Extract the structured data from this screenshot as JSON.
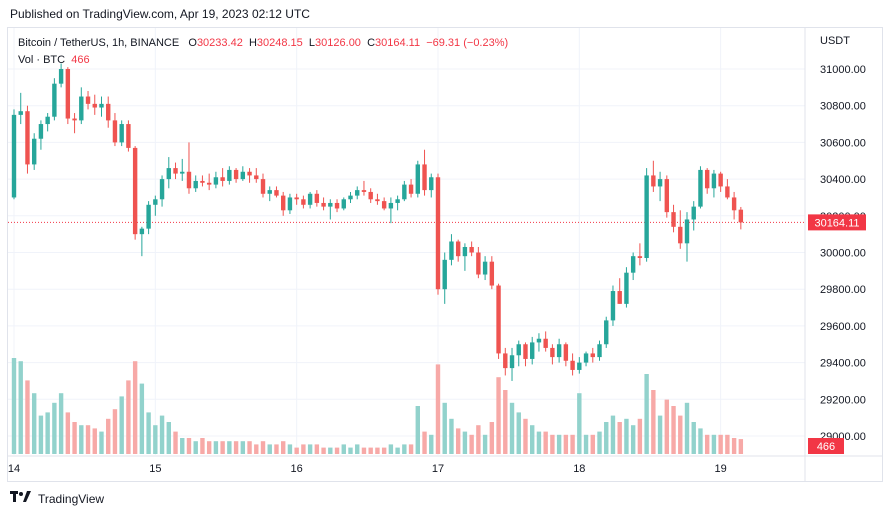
{
  "header": {
    "published": "Published on TradingView.com, Apr 19, 2023 02:12 UTC"
  },
  "legend": {
    "symbol": "Bitcoin / TetherUS, 1h, BINANCE",
    "o_label": "O",
    "o_value": "30233.42",
    "h_label": "H",
    "h_value": "30248.15",
    "l_label": "L",
    "l_value": "30126.00",
    "c_label": "C",
    "c_value": "30164.11",
    "change": "−69.31 (−0.23%)",
    "vol_label": "Vol · BTC",
    "vol_value": "466"
  },
  "axis": {
    "currency": "USDT",
    "last_price_badge": "30164.11",
    "volume_badge": "466"
  },
  "footer": {
    "brand": "TradingView"
  },
  "colors": {
    "up": "#26a69a",
    "down": "#ef5350",
    "up_vol": "#92d2cc",
    "down_vol": "#f7a9a7",
    "grid": "#f0f3fa"
  },
  "chart_data": {
    "type": "candlestick",
    "title": "Bitcoin / TetherUS, 1h, BINANCE",
    "ylim": [
      28900,
      31200
    ],
    "y_ticks": [
      29000,
      29200,
      29400,
      29600,
      29800,
      30000,
      30200,
      30400,
      30600,
      30800,
      31000
    ],
    "x_ticks": [
      {
        "label": "14",
        "index": 0
      },
      {
        "label": "15",
        "index": 21
      },
      {
        "label": "16",
        "index": 42
      },
      {
        "label": "17",
        "index": 63
      },
      {
        "label": "18",
        "index": 84
      },
      {
        "label": "19",
        "index": 105
      }
    ],
    "last_price": 30164.11,
    "grid": true,
    "ohlcv": [
      [
        30300,
        30780,
        30290,
        30750,
        3.0
      ],
      [
        30750,
        30870,
        30700,
        30770,
        2.9
      ],
      [
        30770,
        30800,
        30430,
        30480,
        2.3
      ],
      [
        30480,
        30650,
        30450,
        30620,
        1.9
      ],
      [
        30620,
        30720,
        30560,
        30700,
        1.2
      ],
      [
        30700,
        30760,
        30660,
        30740,
        1.3
      ],
      [
        30740,
        30950,
        30720,
        30920,
        1.6
      ],
      [
        30920,
        31030,
        30900,
        31000,
        1.9
      ],
      [
        31000,
        31010,
        30700,
        30730,
        1.3
      ],
      [
        30730,
        30760,
        30650,
        30720,
        1.0
      ],
      [
        30720,
        30900,
        30700,
        30850,
        0.9
      ],
      [
        30850,
        30880,
        30780,
        30810,
        0.9
      ],
      [
        30810,
        30860,
        30750,
        30790,
        0.8
      ],
      [
        30790,
        30850,
        30740,
        30810,
        0.7
      ],
      [
        30810,
        30850,
        30680,
        30720,
        1.1
      ],
      [
        30720,
        30760,
        30580,
        30600,
        1.4
      ],
      [
        30600,
        30720,
        30580,
        30700,
        1.8
      ],
      [
        30700,
        30720,
        30550,
        30570,
        2.3
      ],
      [
        30570,
        30580,
        30070,
        30100,
        2.9
      ],
      [
        30100,
        30140,
        29980,
        30130,
        2.2
      ],
      [
        30130,
        30280,
        30100,
        30260,
        1.3
      ],
      [
        30260,
        30310,
        30200,
        30290,
        0.9
      ],
      [
        30290,
        30420,
        30250,
        30400,
        1.2
      ],
      [
        30400,
        30520,
        30350,
        30460,
        1.0
      ],
      [
        30460,
        30490,
        30400,
        30430,
        0.7
      ],
      [
        30430,
        30510,
        30390,
        30440,
        0.5
      ],
      [
        30440,
        30600,
        30320,
        30350,
        0.5
      ],
      [
        30350,
        30420,
        30330,
        30390,
        0.4
      ],
      [
        30390,
        30420,
        30360,
        30380,
        0.5
      ],
      [
        30380,
        30430,
        30340,
        30370,
        0.4
      ],
      [
        30370,
        30440,
        30350,
        30410,
        0.4
      ],
      [
        30410,
        30460,
        30360,
        30390,
        0.4
      ],
      [
        30390,
        30470,
        30370,
        30450,
        0.4
      ],
      [
        30450,
        30460,
        30380,
        30400,
        0.4
      ],
      [
        30400,
        30470,
        30390,
        30440,
        0.4
      ],
      [
        30440,
        30460,
        30380,
        30420,
        0.4
      ],
      [
        30420,
        30460,
        30380,
        30400,
        0.3
      ],
      [
        30400,
        30430,
        30300,
        30320,
        0.4
      ],
      [
        30320,
        30360,
        30280,
        30340,
        0.3
      ],
      [
        30340,
        30360,
        30300,
        30310,
        0.3
      ],
      [
        30310,
        30330,
        30200,
        30230,
        0.4
      ],
      [
        30230,
        30320,
        30210,
        30300,
        0.3
      ],
      [
        30300,
        30320,
        30260,
        30290,
        0.2
      ],
      [
        30290,
        30310,
        30240,
        30260,
        0.3
      ],
      [
        30260,
        30330,
        30240,
        30320,
        0.3
      ],
      [
        30320,
        30340,
        30250,
        30270,
        0.3
      ],
      [
        30270,
        30300,
        30230,
        30250,
        0.2
      ],
      [
        30250,
        30290,
        30180,
        30270,
        0.2
      ],
      [
        30270,
        30290,
        30220,
        30240,
        0.2
      ],
      [
        30240,
        30300,
        30230,
        30290,
        0.3
      ],
      [
        30290,
        30330,
        30270,
        30310,
        0.2
      ],
      [
        30310,
        30360,
        30290,
        30340,
        0.3
      ],
      [
        30340,
        30390,
        30310,
        30330,
        0.2
      ],
      [
        30330,
        30350,
        30270,
        30290,
        0.2
      ],
      [
        30290,
        30320,
        30260,
        30280,
        0.2
      ],
      [
        30280,
        30300,
        30230,
        30240,
        0.2
      ],
      [
        30240,
        30300,
        30160,
        30270,
        0.3
      ],
      [
        30270,
        30310,
        30230,
        30290,
        0.2
      ],
      [
        30290,
        30390,
        30280,
        30370,
        0.3
      ],
      [
        30370,
        30400,
        30300,
        30320,
        0.3
      ],
      [
        30320,
        30500,
        30300,
        30480,
        1.5
      ],
      [
        30480,
        30560,
        30310,
        30340,
        0.7
      ],
      [
        30340,
        30430,
        30300,
        30410,
        0.6
      ],
      [
        30410,
        30430,
        29770,
        29800,
        2.8
      ],
      [
        29800,
        30000,
        29720,
        29960,
        1.6
      ],
      [
        29960,
        30100,
        29930,
        30060,
        1.1
      ],
      [
        30060,
        30070,
        29950,
        29980,
        0.8
      ],
      [
        29980,
        30050,
        29900,
        30030,
        0.7
      ],
      [
        30030,
        30060,
        29980,
        30000,
        0.6
      ],
      [
        30000,
        30030,
        29860,
        29880,
        0.9
      ],
      [
        29880,
        29980,
        29850,
        29950,
        0.6
      ],
      [
        29950,
        29980,
        29800,
        29820,
        1.0
      ],
      [
        29820,
        29830,
        29420,
        29450,
        2.4
      ],
      [
        29450,
        29480,
        29330,
        29370,
        2.0
      ],
      [
        29370,
        29480,
        29300,
        29440,
        1.6
      ],
      [
        29440,
        29520,
        29380,
        29500,
        1.3
      ],
      [
        29500,
        29510,
        29380,
        29420,
        1.1
      ],
      [
        29420,
        29540,
        29390,
        29510,
        0.9
      ],
      [
        29510,
        29560,
        29460,
        29530,
        0.7
      ],
      [
        29530,
        29570,
        29460,
        29480,
        0.7
      ],
      [
        29480,
        29500,
        29390,
        29430,
        0.6
      ],
      [
        29430,
        29530,
        29400,
        29500,
        0.6
      ],
      [
        29500,
        29510,
        29380,
        29410,
        0.6
      ],
      [
        29410,
        29450,
        29330,
        29360,
        0.6
      ],
      [
        29360,
        29430,
        29340,
        29400,
        1.9
      ],
      [
        29400,
        29460,
        29380,
        29450,
        0.6
      ],
      [
        29450,
        29480,
        29400,
        29430,
        0.6
      ],
      [
        29430,
        29520,
        29410,
        29500,
        0.7
      ],
      [
        29500,
        29650,
        29480,
        29630,
        1.0
      ],
      [
        29630,
        29820,
        29600,
        29790,
        1.2
      ],
      [
        29790,
        29860,
        29720,
        29720,
        1.0
      ],
      [
        29720,
        29920,
        29700,
        29890,
        1.1
      ],
      [
        29890,
        30000,
        29850,
        29980,
        0.9
      ],
      [
        29980,
        30050,
        29930,
        29970,
        1.1
      ],
      [
        29970,
        30460,
        29950,
        30420,
        2.5
      ],
      [
        30420,
        30500,
        30330,
        30360,
        2.0
      ],
      [
        30360,
        30440,
        30280,
        30400,
        1.2
      ],
      [
        30400,
        30420,
        30190,
        30220,
        1.7
      ],
      [
        30220,
        30260,
        30110,
        30140,
        1.5
      ],
      [
        30140,
        30230,
        30020,
        30050,
        1.2
      ],
      [
        30050,
        30220,
        29950,
        30180,
        1.6
      ],
      [
        30180,
        30280,
        30120,
        30250,
        1.0
      ],
      [
        30250,
        30470,
        30240,
        30450,
        0.8
      ],
      [
        30450,
        30460,
        30320,
        30350,
        0.6
      ],
      [
        30350,
        30450,
        30300,
        30430,
        0.6
      ],
      [
        30430,
        30440,
        30330,
        30360,
        0.6
      ],
      [
        30360,
        30400,
        30290,
        30300,
        0.6
      ],
      [
        30300,
        30330,
        30180,
        30230,
        0.5
      ],
      [
        30233.42,
        30248.15,
        30126.0,
        30164.11,
        0.466
      ]
    ]
  }
}
